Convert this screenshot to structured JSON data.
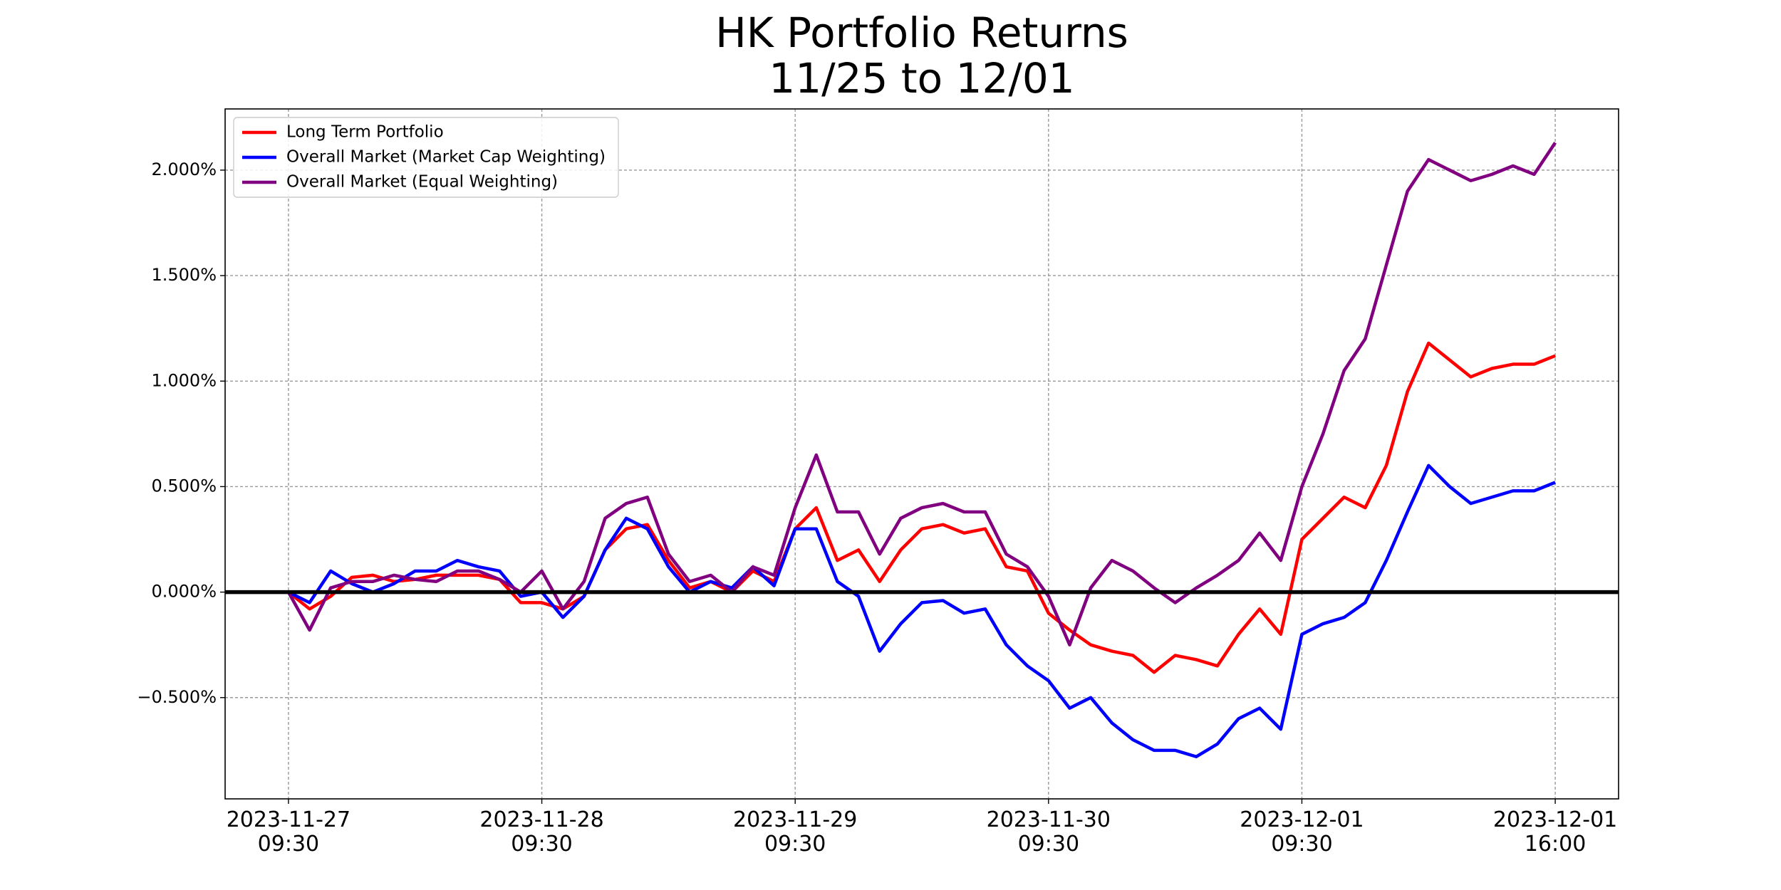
{
  "chart_data": {
    "type": "line",
    "title": "HK Portfolio Returns",
    "subtitle": "11/25 to 12/01",
    "x": [
      0,
      1,
      2,
      3,
      4,
      5,
      6,
      7,
      8,
      9,
      10,
      11,
      12,
      13,
      14,
      15,
      16,
      17,
      18,
      19,
      20,
      21,
      22,
      23,
      24,
      25,
      26,
      27,
      28,
      29,
      30,
      31,
      32,
      33,
      34,
      35,
      36,
      37,
      38,
      39,
      40,
      41,
      42,
      43,
      44,
      45,
      46,
      47,
      48,
      49,
      50,
      51,
      52,
      53,
      54,
      55,
      56,
      57,
      58,
      59,
      60
    ],
    "series": [
      {
        "name": "Long Term Portfolio",
        "color": "#ff0000",
        "values": [
          0,
          -0.08,
          -0.02,
          0.07,
          0.08,
          0.05,
          0.06,
          0.08,
          0.08,
          0.08,
          0.06,
          -0.05,
          -0.05,
          -0.08,
          -0.02,
          0.2,
          0.3,
          0.32,
          0.15,
          0.02,
          0.05,
          0.0,
          0.1,
          0.05,
          0.3,
          0.4,
          0.15,
          0.2,
          0.05,
          0.2,
          0.3,
          0.32,
          0.28,
          0.3,
          0.12,
          0.1,
          -0.1,
          -0.18,
          -0.25,
          -0.28,
          -0.3,
          -0.38,
          -0.3,
          -0.32,
          -0.35,
          -0.2,
          -0.08,
          -0.2,
          0.25,
          0.35,
          0.45,
          0.4,
          0.6,
          0.95,
          1.18,
          1.1,
          1.02,
          1.06,
          1.08,
          1.08,
          1.12
        ]
      },
      {
        "name": "Overall Market (Market Cap Weighting)",
        "color": "#0000ff",
        "values": [
          0,
          -0.05,
          0.1,
          0.04,
          0.0,
          0.04,
          0.1,
          0.1,
          0.15,
          0.12,
          0.1,
          -0.02,
          0.0,
          -0.12,
          -0.02,
          0.2,
          0.35,
          0.3,
          0.12,
          0.0,
          0.05,
          0.02,
          0.12,
          0.03,
          0.3,
          0.3,
          0.05,
          -0.02,
          -0.28,
          -0.15,
          -0.05,
          -0.04,
          -0.1,
          -0.08,
          -0.25,
          -0.35,
          -0.42,
          -0.55,
          -0.5,
          -0.62,
          -0.7,
          -0.75,
          -0.75,
          -0.78,
          -0.72,
          -0.6,
          -0.55,
          -0.65,
          -0.2,
          -0.15,
          -0.12,
          -0.05,
          0.15,
          0.38,
          0.6,
          0.5,
          0.42,
          0.45,
          0.48,
          0.48,
          0.52
        ]
      },
      {
        "name": "Overall Market (Equal Weighting)",
        "color": "#800080",
        "values": [
          0,
          -0.18,
          0.02,
          0.05,
          0.05,
          0.08,
          0.06,
          0.05,
          0.1,
          0.1,
          0.06,
          0.0,
          0.1,
          -0.08,
          0.05,
          0.35,
          0.42,
          0.45,
          0.18,
          0.05,
          0.08,
          0.0,
          0.12,
          0.08,
          0.4,
          0.65,
          0.38,
          0.38,
          0.18,
          0.35,
          0.4,
          0.42,
          0.38,
          0.38,
          0.18,
          0.12,
          -0.02,
          -0.25,
          0.02,
          0.15,
          0.1,
          0.02,
          -0.05,
          0.02,
          0.08,
          0.15,
          0.28,
          0.15,
          0.5,
          0.75,
          1.05,
          1.2,
          1.55,
          1.9,
          2.05,
          2.0,
          1.95,
          1.98,
          2.02,
          1.98,
          2.13
        ]
      }
    ],
    "xlim": [
      -3,
      63
    ],
    "xticks": [
      {
        "value": 0,
        "label": "2023-11-27 09:30"
      },
      {
        "value": 12,
        "label": "2023-11-28 09:30"
      },
      {
        "value": 24,
        "label": "2023-11-29 09:30"
      },
      {
        "value": 36,
        "label": "2023-11-30 09:30"
      },
      {
        "value": 48,
        "label": "2023-12-01 09:30"
      },
      {
        "value": 60,
        "label": "2023-12-01 16:00"
      }
    ],
    "ylim": [
      -0.98,
      2.29
    ],
    "yticks": [
      {
        "value": -0.5,
        "label": "−0.500%"
      },
      {
        "value": 0,
        "label": "0.000%"
      },
      {
        "value": 0.5,
        "label": "0.500%"
      },
      {
        "value": 1,
        "label": "1.000%"
      },
      {
        "value": 1.5,
        "label": "1.500%"
      },
      {
        "value": 2,
        "label": "2.000%"
      }
    ],
    "axhline": 0,
    "grid": true,
    "legend": "upper left"
  }
}
